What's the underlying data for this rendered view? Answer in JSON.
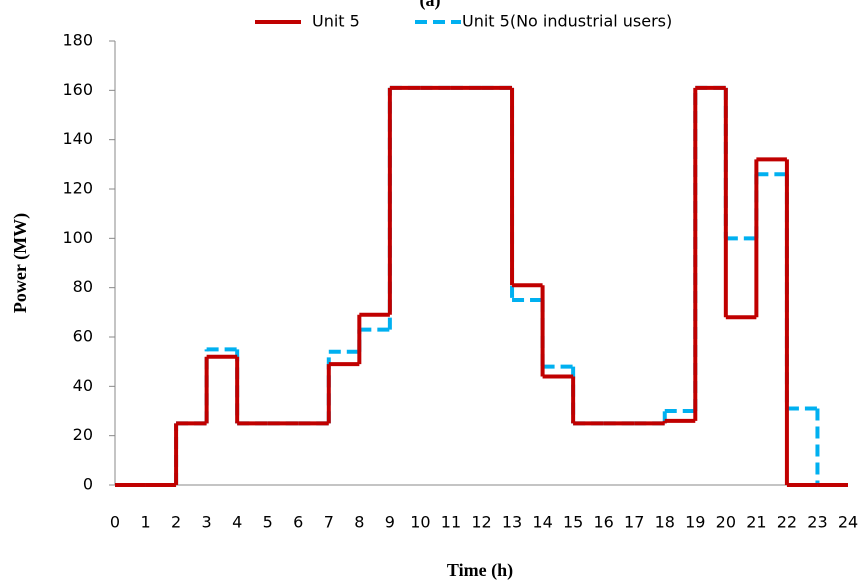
{
  "chart_data": {
    "type": "step",
    "title": "(a)",
    "x_label": "Time (h)",
    "y_label": "Power (MW)",
    "x": [
      0,
      1,
      2,
      3,
      4,
      5,
      6,
      7,
      8,
      9,
      10,
      11,
      12,
      13,
      14,
      15,
      16,
      17,
      18,
      19,
      20,
      21,
      22,
      23
    ],
    "series": [
      {
        "name": "Unit 5",
        "color": "#c00000",
        "dash": false,
        "values": [
          0,
          0,
          25,
          52,
          25,
          25,
          25,
          49,
          69,
          161,
          161,
          161,
          161,
          81,
          44,
          25,
          25,
          25,
          26,
          161,
          68,
          132,
          0,
          0
        ]
      },
      {
        "name": "Unit 5(No industrial users)",
        "color": "#00b0f0",
        "dash": true,
        "values": [
          0,
          0,
          25,
          55,
          25,
          25,
          25,
          54,
          63,
          161,
          161,
          161,
          161,
          75,
          48,
          25,
          25,
          25,
          30,
          161,
          100,
          126,
          31,
          0
        ]
      }
    ],
    "xlim": [
      0,
      24
    ],
    "xticks": [
      0,
      1,
      2,
      3,
      4,
      5,
      6,
      7,
      8,
      9,
      10,
      11,
      12,
      13,
      14,
      15,
      16,
      17,
      18,
      19,
      20,
      21,
      22,
      23,
      24
    ],
    "ylim": [
      0,
      180
    ],
    "yticks": [
      0,
      20,
      40,
      60,
      80,
      100,
      120,
      140,
      160,
      180
    ],
    "grid": false,
    "legend": "top"
  }
}
